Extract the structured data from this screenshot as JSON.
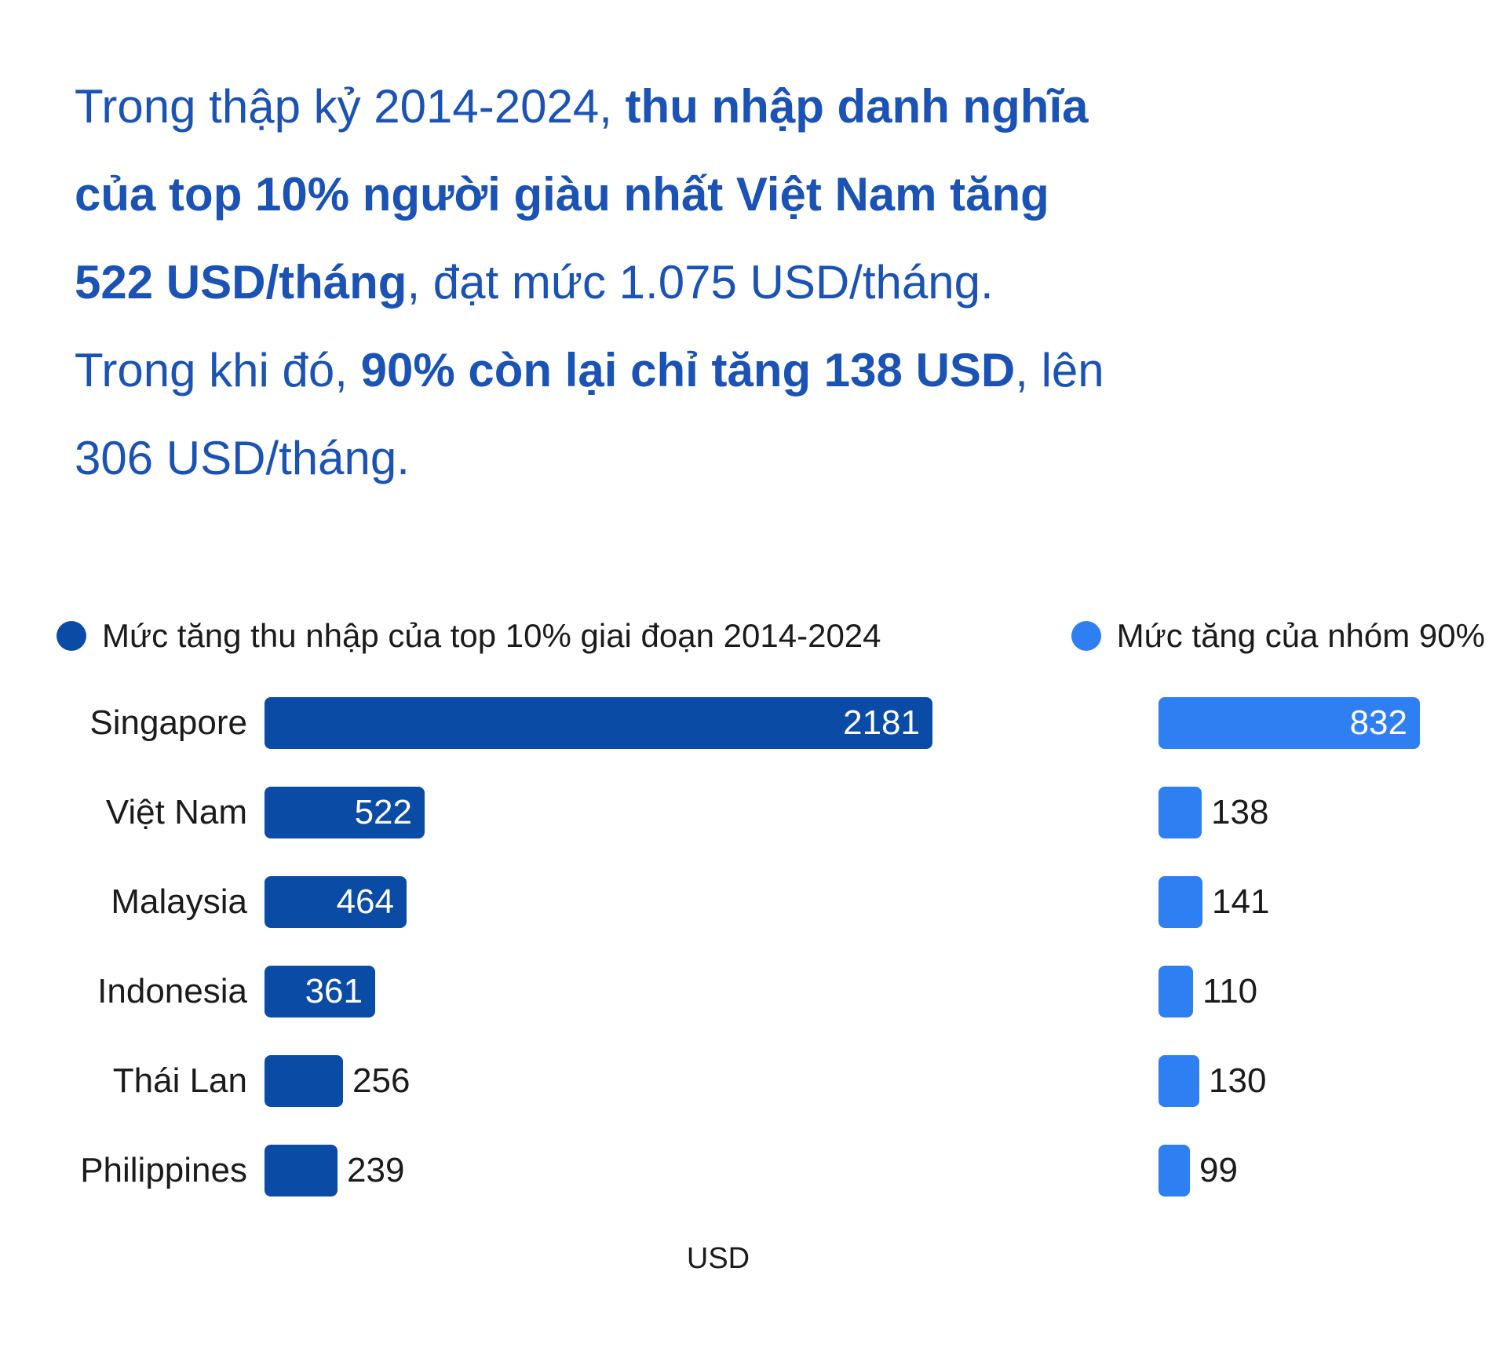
{
  "headline": {
    "l1a": "Trong thập kỷ 2014-2024, ",
    "l1b": "thu nhập danh nghĩa",
    "l2a": "của top 10% người giàu nhất Việt Nam tăng",
    "l3a": "522 USD/tháng",
    "l3b": ", đạt mức 1.075 USD/tháng.",
    "l4a": "Trong khi đó, ",
    "l4b": "90% còn lại chỉ tăng 138 USD",
    "l4c": ", lên",
    "l5a": "306 USD/tháng."
  },
  "legend": {
    "top10_label": "Mức tăng thu nhập của top 10% giai đoạn 2014-2024",
    "rest90_label": "Mức tăng của nhóm 90%"
  },
  "colors": {
    "dark_blue": "#0A4BA6",
    "light_blue": "#2E7FF2",
    "headline_blue": "#1A53B5",
    "text_dark": "#1b1b1b"
  },
  "chart_data": {
    "type": "bar",
    "orientation": "horizontal",
    "categories": [
      "Singapore",
      "Việt Nam",
      "Malaysia",
      "Indonesia",
      "Thái Lan",
      "Philippines"
    ],
    "series": [
      {
        "name": "Mức tăng thu nhập của top 10% giai đoạn 2014-2024",
        "color": "#0A4BA6",
        "values": [
          2181,
          522,
          464,
          361,
          256,
          239
        ]
      },
      {
        "name": "Mức tăng của nhóm 90%",
        "color": "#2E7FF2",
        "values": [
          832,
          138,
          141,
          110,
          130,
          99
        ]
      }
    ],
    "xlabel": "USD",
    "value_labels": true,
    "legend_position": "top",
    "grid": false
  }
}
